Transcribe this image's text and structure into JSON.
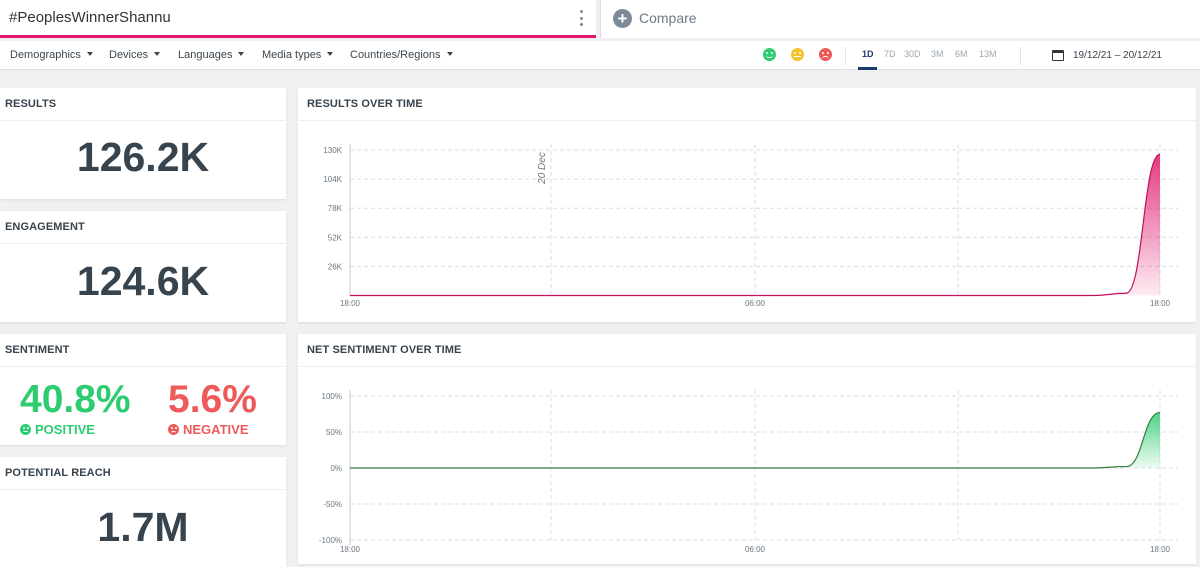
{
  "query": {
    "text": "#PeoplesWinnerShannu"
  },
  "compare": {
    "label": "Compare"
  },
  "filters": [
    {
      "label": "Demographics"
    },
    {
      "label": "Devices"
    },
    {
      "label": "Languages"
    },
    {
      "label": "Media types"
    },
    {
      "label": "Countries/Regions"
    }
  ],
  "sentiment_filters": [
    "positive",
    "neutral",
    "negative"
  ],
  "time_ranges": [
    {
      "label": "1D",
      "active": true
    },
    {
      "label": "7D",
      "active": false
    },
    {
      "label": "30D",
      "active": false
    },
    {
      "label": "3M",
      "active": false
    },
    {
      "label": "6M",
      "active": false
    },
    {
      "label": "13M",
      "active": false
    }
  ],
  "date_range": "19/12/21 – 20/12/21",
  "cards": {
    "results": {
      "title": "RESULTS",
      "value": "126.2K"
    },
    "engagement": {
      "title": "ENGAGEMENT",
      "value": "124.6K"
    },
    "sentiment": {
      "title": "SENTIMENT",
      "positive_value": "40.8%",
      "positive_label": "POSITIVE",
      "negative_value": "5.6%",
      "negative_label": "NEGATIVE"
    },
    "reach": {
      "title": "POTENTIAL REACH",
      "value": "1.7M"
    }
  },
  "colors": {
    "accent": "#e0166c",
    "positive": "#2ecc71",
    "negative": "#ee5a5a",
    "text": "#37434d"
  },
  "chart_data": [
    {
      "type": "area",
      "title": "RESULTS OVER TIME",
      "x_ticks": [
        "18:00",
        "06:00",
        "18:00"
      ],
      "y_ticks": [
        "130K",
        "104K",
        "78K",
        "52K",
        "26K"
      ],
      "ylim": [
        0,
        130000
      ],
      "annotation": "20 Dec",
      "series": [
        {
          "values_hourly": [
            0,
            0,
            0,
            0,
            0,
            0,
            0,
            0,
            0,
            0,
            0,
            0,
            0,
            0,
            0,
            0,
            0,
            0,
            0,
            0,
            0,
            0,
            0,
            2000,
            126200
          ]
        }
      ]
    },
    {
      "type": "area",
      "title": "NET SENTIMENT OVER TIME",
      "x_ticks": [
        "18:00",
        "06:00",
        "18:00"
      ],
      "y_ticks": [
        "100%",
        "50%",
        "0%",
        "-50%",
        "-100%"
      ],
      "ylim": [
        -100,
        100
      ],
      "series": [
        {
          "values_hourly": [
            0,
            0,
            0,
            0,
            0,
            0,
            0,
            0,
            0,
            0,
            0,
            0,
            0,
            0,
            0,
            0,
            0,
            0,
            0,
            0,
            0,
            0,
            0,
            2,
            77
          ]
        }
      ]
    }
  ]
}
